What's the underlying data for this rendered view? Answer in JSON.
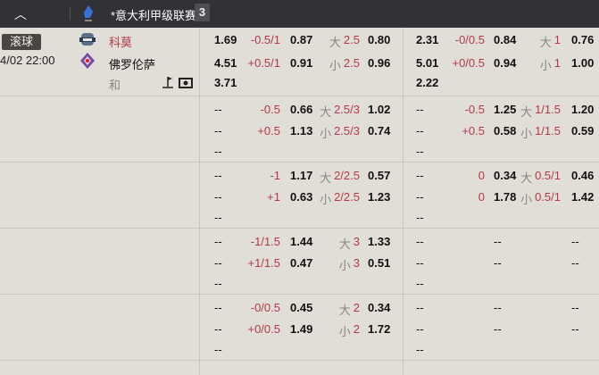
{
  "header": {
    "collapse_icon": "chevron-up-icon",
    "league_name": "*意大利甲级联赛",
    "match_count": "3"
  },
  "match": {
    "status": "滚球",
    "datetime": "4/02 22:00",
    "home": "科莫",
    "away": "佛罗伦萨",
    "draw": "和",
    "home_color": "#b23a48"
  },
  "colors": {
    "handicap": "#b23a48",
    "label": "#8a8580",
    "header_bg": "#303236",
    "body_bg": "#e1ddd7"
  },
  "sections": [
    {
      "lines": [
        {
          "l": [
            "1.69",
            "-0.5/1",
            "0.87",
            "大",
            "2.5",
            "0.80"
          ],
          "r": [
            "2.31",
            "-0/0.5",
            "0.84",
            "大",
            "1",
            "0.76"
          ]
        },
        {
          "l": [
            "4.51",
            "+0.5/1",
            "0.91",
            "小",
            "2.5",
            "0.96"
          ],
          "r": [
            "5.01",
            "+0/0.5",
            "0.94",
            "小",
            "1",
            "1.00"
          ]
        },
        {
          "l": [
            "3.71",
            "",
            "",
            "",
            "",
            ""
          ],
          "r": [
            "2.22",
            "",
            "",
            "",
            "",
            ""
          ]
        }
      ]
    },
    {
      "lines": [
        {
          "l": [
            "--",
            "-0.5",
            "0.66",
            "大",
            "2.5/3",
            "1.02"
          ],
          "r": [
            "--",
            "-0.5",
            "1.25",
            "大",
            "1/1.5",
            "1.20"
          ]
        },
        {
          "l": [
            "--",
            "+0.5",
            "1.13",
            "小",
            "2.5/3",
            "0.74"
          ],
          "r": [
            "--",
            "+0.5",
            "0.58",
            "小",
            "1/1.5",
            "0.59"
          ]
        },
        {
          "l": [
            "--",
            "",
            "",
            "",
            "",
            ""
          ],
          "r": [
            "--",
            "",
            "",
            "",
            "",
            ""
          ]
        }
      ]
    },
    {
      "lines": [
        {
          "l": [
            "--",
            "-1",
            "1.17",
            "大",
            "2/2.5",
            "0.57"
          ],
          "r": [
            "--",
            "0",
            "0.34",
            "大",
            "0.5/1",
            "0.46"
          ]
        },
        {
          "l": [
            "--",
            "+1",
            "0.63",
            "小",
            "2/2.5",
            "1.23"
          ],
          "r": [
            "--",
            "0",
            "1.78",
            "小",
            "0.5/1",
            "1.42"
          ]
        },
        {
          "l": [
            "--",
            "",
            "",
            "",
            "",
            ""
          ],
          "r": [
            "--",
            "",
            "",
            "",
            "",
            ""
          ]
        }
      ]
    },
    {
      "lines": [
        {
          "l": [
            "--",
            "-1/1.5",
            "1.44",
            "大",
            "3",
            "1.33"
          ],
          "r": [
            "--",
            "",
            "--",
            "",
            "",
            "--"
          ]
        },
        {
          "l": [
            "--",
            "+1/1.5",
            "0.47",
            "小",
            "3",
            "0.51"
          ],
          "r": [
            "--",
            "",
            "--",
            "",
            "",
            "--"
          ]
        },
        {
          "l": [
            "--",
            "",
            "",
            "",
            "",
            ""
          ],
          "r": [
            "--",
            "",
            "",
            "",
            "",
            ""
          ]
        }
      ]
    },
    {
      "lines": [
        {
          "l": [
            "--",
            "-0/0.5",
            "0.45",
            "大",
            "2",
            "0.34"
          ],
          "r": [
            "--",
            "",
            "--",
            "",
            "",
            "--"
          ]
        },
        {
          "l": [
            "--",
            "+0/0.5",
            "1.49",
            "小",
            "2",
            "1.72"
          ],
          "r": [
            "--",
            "",
            "--",
            "",
            "",
            "--"
          ]
        },
        {
          "l": [
            "--",
            "",
            "",
            "",
            "",
            ""
          ],
          "r": [
            "--",
            "",
            "",
            "",
            "",
            ""
          ]
        }
      ]
    }
  ]
}
